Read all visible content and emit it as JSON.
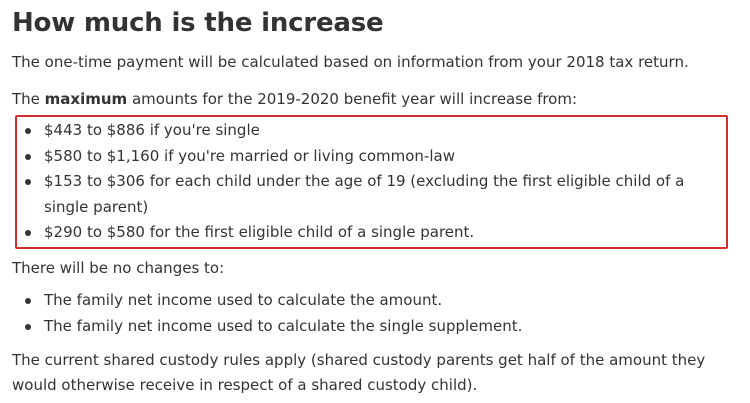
{
  "section": {
    "title": "How much is the increase",
    "intro": "The one-time payment will be calculated based on information from your 2018 tax return.",
    "max_prefix": "The ",
    "max_bold": "maximum",
    "max_suffix": " amounts for the 2019-2020 benefit year will increase from:",
    "increases": [
      "$443 to $886 if you're single",
      "$580 to $1,160 if you're married or living common-law",
      "$153 to $306 for each child under the age of 19 (excluding the first eligible child of a single parent)",
      "$290 to $580 for the first eligible child of a single parent."
    ],
    "no_change_intro": "There will be no changes to:",
    "no_changes": [
      "The family net income used to calculate the amount.",
      "The family net income used to calculate the single supplement."
    ],
    "custody_note": "The current shared custody rules apply (shared custody parents get half of the amount they would otherwise receive in respect of a shared custody child)."
  },
  "colors": {
    "highlight_border": "#d32f2f",
    "text": "#333333"
  }
}
